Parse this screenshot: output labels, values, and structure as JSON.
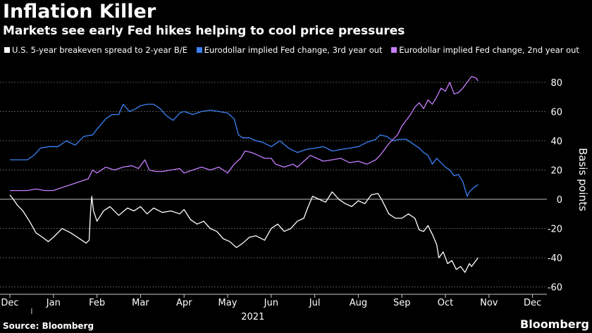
{
  "title": "Inflation Killer",
  "subtitle": "Markets see early Fed hikes helping to cool price pressures",
  "source": "Source: Bloomberg",
  "brand": "Bloomberg",
  "colors": {
    "white_series": "#ffffff",
    "blue_series": "#3b82f6",
    "purple_series": "#c77dff",
    "grid": "#555555",
    "zero_line": "#999999"
  },
  "chart_data": {
    "type": "line",
    "ylabel": "Basis points",
    "ylim": [
      -65,
      92
    ],
    "yticks": [
      -60,
      -40,
      -20,
      0,
      20,
      40,
      60,
      80
    ],
    "xticks": [
      "Dec",
      "Jan",
      "Feb",
      "Mar",
      "Apr",
      "May",
      "Jun",
      "Jul",
      "Aug",
      "Sep",
      "Oct",
      "Nov",
      "Dec"
    ],
    "year_label": "2021",
    "grid": true,
    "legend_position": "top",
    "series": [
      {
        "name": "U.S. 5-year breakeven spread to 2-year B/E",
        "color": "#ffffff",
        "points": [
          [
            0,
            3
          ],
          [
            0.08,
            0
          ],
          [
            0.17,
            -4
          ],
          [
            0.3,
            -8
          ],
          [
            0.45,
            -15
          ],
          [
            0.6,
            -23
          ],
          [
            0.75,
            -26
          ],
          [
            0.88,
            -29
          ],
          [
            1.0,
            -26
          ],
          [
            1.2,
            -20
          ],
          [
            1.4,
            -23
          ],
          [
            1.6,
            -27
          ],
          [
            1.75,
            -30
          ],
          [
            1.82,
            -28
          ],
          [
            1.85,
            -10
          ],
          [
            1.88,
            2
          ],
          [
            1.92,
            -8
          ],
          [
            2.0,
            -15
          ],
          [
            2.15,
            -8
          ],
          [
            2.3,
            -5
          ],
          [
            2.5,
            -11
          ],
          [
            2.7,
            -6
          ],
          [
            2.85,
            -8
          ],
          [
            3.0,
            -5
          ],
          [
            3.15,
            -10
          ],
          [
            3.3,
            -6
          ],
          [
            3.5,
            -9
          ],
          [
            3.7,
            -8
          ],
          [
            3.9,
            -10
          ],
          [
            4.0,
            -7
          ],
          [
            4.15,
            -14
          ],
          [
            4.3,
            -17
          ],
          [
            4.45,
            -15
          ],
          [
            4.6,
            -20
          ],
          [
            4.75,
            -22
          ],
          [
            4.9,
            -27
          ],
          [
            5.05,
            -29
          ],
          [
            5.2,
            -33
          ],
          [
            5.35,
            -30
          ],
          [
            5.5,
            -26
          ],
          [
            5.65,
            -25
          ],
          [
            5.85,
            -28
          ],
          [
            6.0,
            -20
          ],
          [
            6.15,
            -17
          ],
          [
            6.3,
            -22
          ],
          [
            6.45,
            -20
          ],
          [
            6.6,
            -15
          ],
          [
            6.75,
            -13
          ],
          [
            6.85,
            -5
          ],
          [
            6.95,
            2
          ],
          [
            7.1,
            0
          ],
          [
            7.25,
            -2
          ],
          [
            7.4,
            5
          ],
          [
            7.55,
            0
          ],
          [
            7.7,
            -3
          ],
          [
            7.85,
            -5
          ],
          [
            8.0,
            -1
          ],
          [
            8.15,
            -3
          ],
          [
            8.3,
            3
          ],
          [
            8.45,
            4
          ],
          [
            8.55,
            -1
          ],
          [
            8.7,
            -10
          ],
          [
            8.85,
            -13
          ],
          [
            9.0,
            -13
          ],
          [
            9.15,
            -10
          ],
          [
            9.3,
            -13
          ],
          [
            9.4,
            -21
          ],
          [
            9.5,
            -22
          ],
          [
            9.6,
            -18
          ],
          [
            9.7,
            -24
          ],
          [
            9.8,
            -31
          ],
          [
            9.85,
            -40
          ],
          [
            9.95,
            -36
          ],
          [
            10.05,
            -44
          ],
          [
            10.15,
            -42
          ],
          [
            10.25,
            -48
          ],
          [
            10.35,
            -46
          ],
          [
            10.45,
            -50
          ],
          [
            10.55,
            -44
          ],
          [
            10.6,
            -46
          ],
          [
            10.7,
            -42
          ],
          [
            10.75,
            -40
          ]
        ]
      },
      {
        "name": "Eurodollar implied Fed change, 3rd year out",
        "color": "#3b82f6",
        "points": [
          [
            0,
            27
          ],
          [
            0.2,
            27
          ],
          [
            0.4,
            27
          ],
          [
            0.55,
            30
          ],
          [
            0.7,
            35
          ],
          [
            0.9,
            36
          ],
          [
            1.1,
            36
          ],
          [
            1.3,
            40
          ],
          [
            1.5,
            37
          ],
          [
            1.7,
            43
          ],
          [
            1.9,
            44
          ],
          [
            2.0,
            48
          ],
          [
            2.2,
            55
          ],
          [
            2.35,
            58
          ],
          [
            2.5,
            58
          ],
          [
            2.6,
            65
          ],
          [
            2.75,
            60
          ],
          [
            2.9,
            62
          ],
          [
            3.0,
            64
          ],
          [
            3.15,
            65
          ],
          [
            3.3,
            65
          ],
          [
            3.45,
            62
          ],
          [
            3.6,
            57
          ],
          [
            3.75,
            54
          ],
          [
            3.9,
            59
          ],
          [
            4.0,
            60
          ],
          [
            4.2,
            58
          ],
          [
            4.4,
            60
          ],
          [
            4.6,
            61
          ],
          [
            4.8,
            60
          ],
          [
            5.0,
            59
          ],
          [
            5.15,
            55
          ],
          [
            5.25,
            44
          ],
          [
            5.35,
            42
          ],
          [
            5.5,
            42
          ],
          [
            5.65,
            40
          ],
          [
            5.8,
            39
          ],
          [
            6.0,
            36
          ],
          [
            6.2,
            40
          ],
          [
            6.4,
            35
          ],
          [
            6.6,
            32
          ],
          [
            6.8,
            34
          ],
          [
            7.0,
            35
          ],
          [
            7.2,
            36
          ],
          [
            7.4,
            33
          ],
          [
            7.6,
            34
          ],
          [
            7.8,
            35
          ],
          [
            8.0,
            36
          ],
          [
            8.2,
            39
          ],
          [
            8.4,
            41
          ],
          [
            8.5,
            44
          ],
          [
            8.65,
            43
          ],
          [
            8.8,
            40
          ],
          [
            8.95,
            41
          ],
          [
            9.1,
            41
          ],
          [
            9.25,
            38
          ],
          [
            9.4,
            35
          ],
          [
            9.5,
            32
          ],
          [
            9.6,
            30
          ],
          [
            9.7,
            24
          ],
          [
            9.8,
            28
          ],
          [
            9.9,
            25
          ],
          [
            10.0,
            22
          ],
          [
            10.1,
            20
          ],
          [
            10.2,
            16
          ],
          [
            10.3,
            17
          ],
          [
            10.4,
            12
          ],
          [
            10.5,
            2
          ],
          [
            10.55,
            5
          ],
          [
            10.65,
            8
          ],
          [
            10.75,
            10
          ]
        ]
      },
      {
        "name": "Eurodollar implied Fed change, 2nd year out",
        "color": "#c77dff",
        "points": [
          [
            0,
            6
          ],
          [
            0.2,
            6
          ],
          [
            0.4,
            6
          ],
          [
            0.6,
            7
          ],
          [
            0.8,
            6
          ],
          [
            1.0,
            6
          ],
          [
            1.2,
            8
          ],
          [
            1.4,
            10
          ],
          [
            1.6,
            12
          ],
          [
            1.8,
            14
          ],
          [
            1.9,
            20
          ],
          [
            2.0,
            18
          ],
          [
            2.2,
            22
          ],
          [
            2.4,
            20
          ],
          [
            2.6,
            22
          ],
          [
            2.8,
            23
          ],
          [
            2.95,
            21
          ],
          [
            3.0,
            23
          ],
          [
            3.1,
            27
          ],
          [
            3.2,
            20
          ],
          [
            3.35,
            19
          ],
          [
            3.5,
            19
          ],
          [
            3.7,
            20
          ],
          [
            3.9,
            21
          ],
          [
            4.0,
            18
          ],
          [
            4.2,
            20
          ],
          [
            4.4,
            22
          ],
          [
            4.6,
            20
          ],
          [
            4.8,
            22
          ],
          [
            5.0,
            18
          ],
          [
            5.15,
            24
          ],
          [
            5.3,
            28
          ],
          [
            5.4,
            33
          ],
          [
            5.55,
            32
          ],
          [
            5.7,
            30
          ],
          [
            5.85,
            28
          ],
          [
            6.0,
            28
          ],
          [
            6.1,
            24
          ],
          [
            6.2,
            23
          ],
          [
            6.3,
            22
          ],
          [
            6.4,
            23
          ],
          [
            6.5,
            24
          ],
          [
            6.6,
            22
          ],
          [
            6.75,
            26
          ],
          [
            6.9,
            30
          ],
          [
            7.05,
            28
          ],
          [
            7.2,
            26
          ],
          [
            7.4,
            27
          ],
          [
            7.6,
            28
          ],
          [
            7.8,
            25
          ],
          [
            8.0,
            26
          ],
          [
            8.2,
            24
          ],
          [
            8.4,
            27
          ],
          [
            8.5,
            30
          ],
          [
            8.6,
            34
          ],
          [
            8.7,
            38
          ],
          [
            8.8,
            41
          ],
          [
            8.9,
            44
          ],
          [
            9.0,
            50
          ],
          [
            9.1,
            54
          ],
          [
            9.2,
            58
          ],
          [
            9.3,
            63
          ],
          [
            9.4,
            66
          ],
          [
            9.5,
            62
          ],
          [
            9.6,
            68
          ],
          [
            9.7,
            65
          ],
          [
            9.8,
            70
          ],
          [
            9.9,
            76
          ],
          [
            10.0,
            74
          ],
          [
            10.1,
            80
          ],
          [
            10.2,
            72
          ],
          [
            10.3,
            73
          ],
          [
            10.4,
            76
          ],
          [
            10.5,
            80
          ],
          [
            10.6,
            84
          ],
          [
            10.7,
            83
          ],
          [
            10.75,
            81
          ]
        ]
      }
    ]
  }
}
